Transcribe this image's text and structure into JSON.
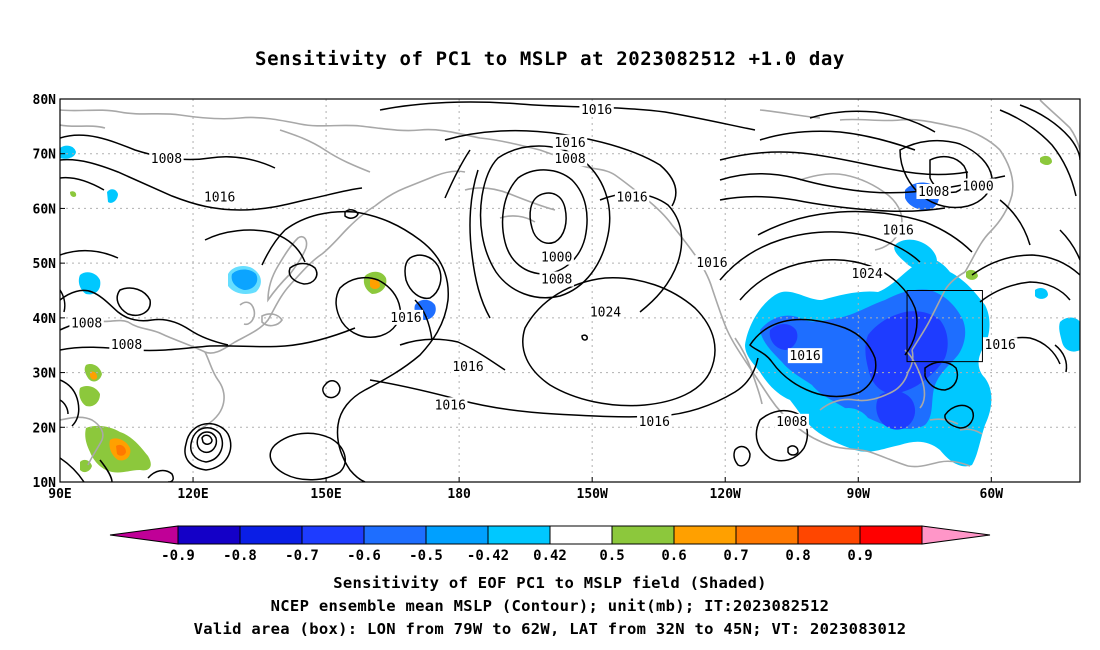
{
  "title": "Sensitivity of PC1 to MSLP at 2023082512 +1.0 day",
  "lat_labels": [
    "80N",
    "70N",
    "60N",
    "50N",
    "40N",
    "30N",
    "20N",
    "10N"
  ],
  "lon_labels": [
    "90E",
    "120E",
    "150E",
    "180",
    "150W",
    "120W",
    "90W",
    "60W"
  ],
  "colorbar": {
    "labels": [
      "-0.9",
      "-0.8",
      "-0.7",
      "-0.6",
      "-0.5",
      "-0.42",
      "0.42",
      "0.5",
      "0.6",
      "0.7",
      "0.8",
      "0.9"
    ],
    "colors": [
      "#c00097",
      "#1400c7",
      "#0a1ee6",
      "#1e3cff",
      "#1e6eff",
      "#00a0ff",
      "#00c8ff",
      "#ffffff",
      "#8cc83c",
      "#ffa000",
      "#ff7800",
      "#ff4600",
      "#ff0000",
      "#ff96c8"
    ]
  },
  "contour_labels": [
    {
      "text": "1016",
      "lon": -149,
      "lat": 78
    },
    {
      "text": "1016",
      "lon": -155,
      "lat": 72
    },
    {
      "text": "1008",
      "lon": -155,
      "lat": 69
    },
    {
      "text": "1008",
      "lon": 114,
      "lat": 69
    },
    {
      "text": "1016",
      "lon": 126,
      "lat": 62
    },
    {
      "text": "1016",
      "lon": -141,
      "lat": 62
    },
    {
      "text": "1008",
      "lon": -73,
      "lat": 63
    },
    {
      "text": "1000",
      "lon": -63,
      "lat": 64
    },
    {
      "text": "1016",
      "lon": -81,
      "lat": 56
    },
    {
      "text": "1000",
      "lon": -158,
      "lat": 51
    },
    {
      "text": "1008",
      "lon": -158,
      "lat": 47
    },
    {
      "text": "1016",
      "lon": -123,
      "lat": 50
    },
    {
      "text": "1024",
      "lon": -88,
      "lat": 48
    },
    {
      "text": "1024",
      "lon": -147,
      "lat": 41
    },
    {
      "text": "1008",
      "lon": 96,
      "lat": 39
    },
    {
      "text": "1016",
      "lon": 168,
      "lat": 40
    },
    {
      "text": "1008",
      "lon": 105,
      "lat": 35
    },
    {
      "text": "1016",
      "lon": -58,
      "lat": 35
    },
    {
      "text": "1016",
      "lon": -102,
      "lat": 33
    },
    {
      "text": "1016",
      "lon": -178,
      "lat": 31
    },
    {
      "text": "1016",
      "lon": 178,
      "lat": 24
    },
    {
      "text": "1016",
      "lon": -136,
      "lat": 21
    },
    {
      "text": "1008",
      "lon": -105,
      "lat": 21
    }
  ],
  "captions": {
    "line1": "Sensitivity of EOF PC1 to MSLP field (Shaded)",
    "line2": "NCEP ensemble mean MSLP (Contour); unit(mb); IT:2023082512",
    "line3": "Valid area (box): LON from 79W to 62W, LAT from 32N to 45N; VT: 2023083012"
  },
  "valid_box": {
    "lon_min": -79,
    "lon_max": -62,
    "lat_min": 32,
    "lat_max": 45
  }
}
